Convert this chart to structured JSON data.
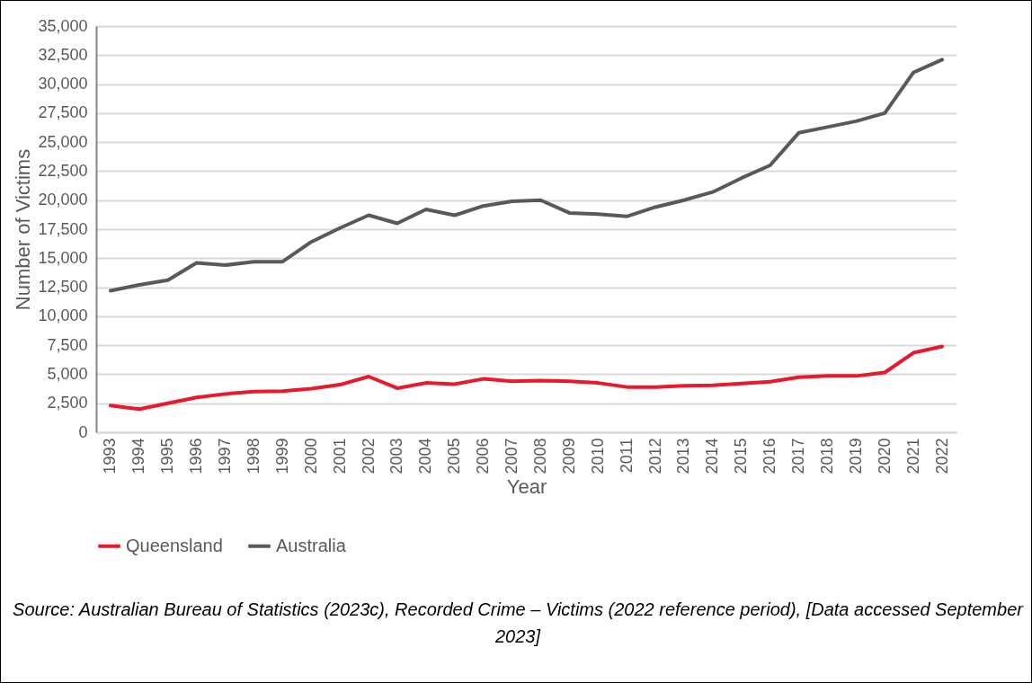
{
  "chart_data": {
    "type": "line",
    "xlabel": "Year",
    "ylabel": "Number of Victims",
    "categories": [
      "1993",
      "1994",
      "1995",
      "1996",
      "1997",
      "1998",
      "1999",
      "2000",
      "2001",
      "2002",
      "2003",
      "2004",
      "2005",
      "2006",
      "2007",
      "2008",
      "2009",
      "2010",
      "2011",
      "2012",
      "2013",
      "2014",
      "2015",
      "2016",
      "2017",
      "2018",
      "2019",
      "2020",
      "2021",
      "2022"
    ],
    "series": [
      {
        "name": "Queensland",
        "color": "#e8192c",
        "values": [
          2300,
          2000,
          2500,
          3000,
          3300,
          3500,
          3550,
          3750,
          4100,
          4800,
          3800,
          4250,
          4150,
          4600,
          4400,
          4450,
          4400,
          4250,
          3900,
          3900,
          4000,
          4050,
          4200,
          4350,
          4750,
          4850,
          4850,
          5150,
          6850,
          7400
        ]
      },
      {
        "name": "Australia",
        "color": "#595959",
        "values": [
          12200,
          12700,
          13100,
          14600,
          14400,
          14700,
          14700,
          16400,
          17600,
          18700,
          18000,
          19200,
          18700,
          19500,
          19900,
          20000,
          18900,
          18800,
          18600,
          19400,
          20000,
          20700,
          21900,
          23000,
          25800,
          26300,
          26800,
          27500,
          31000,
          32100
        ]
      }
    ],
    "ylim": [
      0,
      35000
    ],
    "yticks": [
      {
        "value": 0,
        "label": "0"
      },
      {
        "value": 2500,
        "label": "2,500"
      },
      {
        "value": 5000,
        "label": "5,000"
      },
      {
        "value": 7500,
        "label": "7,500"
      },
      {
        "value": 10000,
        "label": "10,000"
      },
      {
        "value": 12500,
        "label": "12,500"
      },
      {
        "value": 15000,
        "label": "15,000"
      },
      {
        "value": 17500,
        "label": "17,500"
      },
      {
        "value": 20000,
        "label": "20,000"
      },
      {
        "value": 22500,
        "label": "22,500"
      },
      {
        "value": 25000,
        "label": "25,000"
      },
      {
        "value": 27500,
        "label": "27,500"
      },
      {
        "value": 30000,
        "label": "30,000"
      },
      {
        "value": 32500,
        "label": "32,500"
      },
      {
        "value": 35000,
        "label": "35,000"
      }
    ],
    "grid": "y",
    "legend": "bottom",
    "marker": "none",
    "line_style": "solid",
    "annotations": [
      "Source: Australian Bureau of Statistics (2023c), Recorded Crime – Victims (2022 reference period), [Data accessed September 2023]"
    ]
  }
}
